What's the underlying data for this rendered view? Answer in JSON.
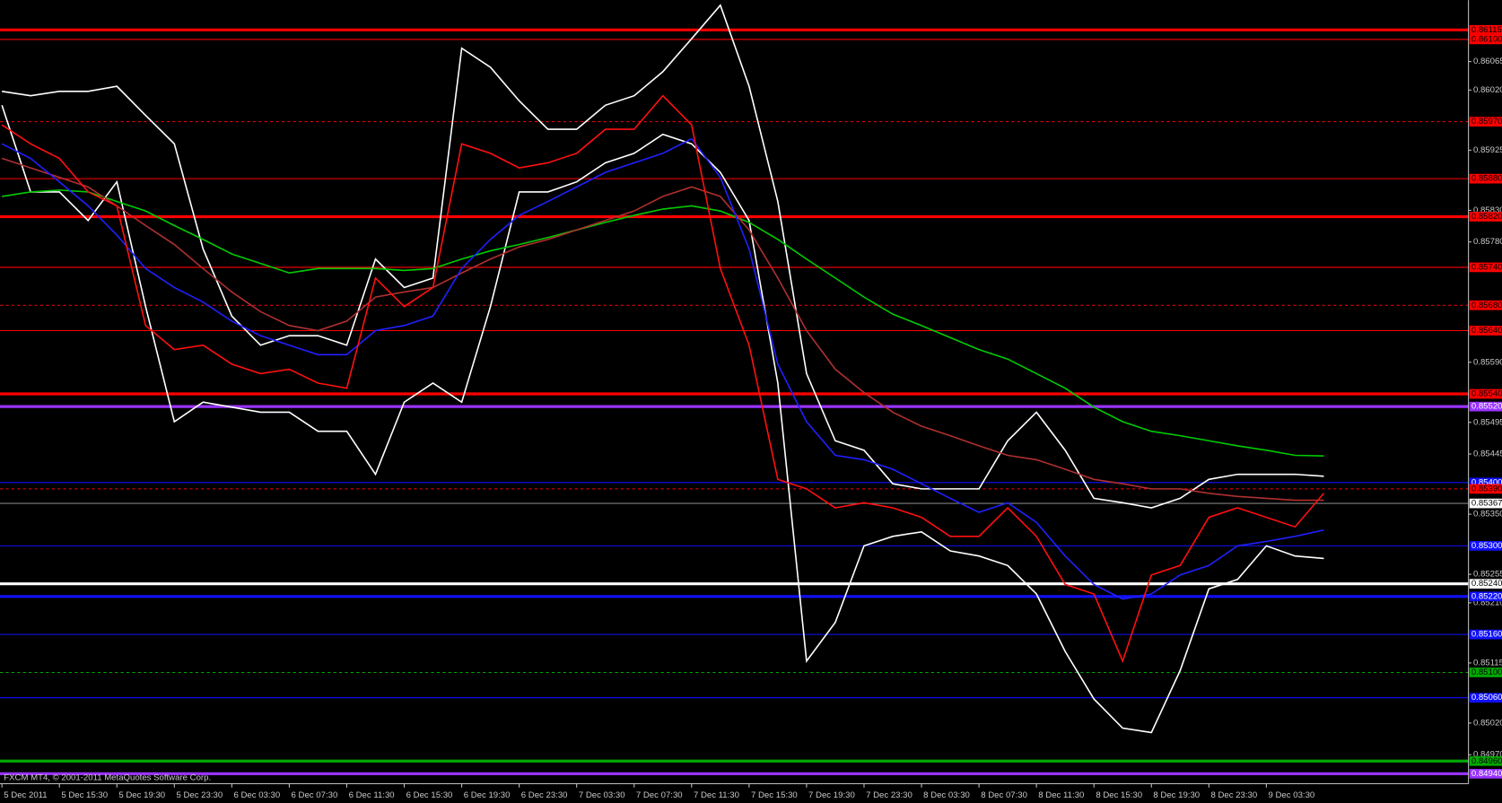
{
  "chart_data": {
    "type": "line",
    "source": "FXCM MT4, © 2001-2011 MetaQuotes Software Corp.",
    "categories": [
      "5 Dec 2011",
      null,
      "5 Dec 15:30",
      null,
      "5 Dec 19:30",
      null,
      "5 Dec 23:30",
      null,
      "6 Dec 03:30",
      null,
      "6 Dec 07:30",
      null,
      "6 Dec 11:30",
      null,
      "6 Dec 15:30",
      null,
      "6 Dec 19:30",
      null,
      "6 Dec 23:30",
      null,
      "7 Dec 03:30",
      null,
      "7 Dec 07:30",
      null,
      "7 Dec 11:30",
      null,
      "7 Dec 15:30",
      null,
      "7 Dec 19:30",
      null,
      "7 Dec 23:30",
      null,
      "8 Dec 03:30",
      null,
      "8 Dec 07:30",
      null,
      "8 Dec 11:30",
      null,
      "8 Dec 15:30",
      null,
      "8 Dec 19:30",
      null,
      "8 Dec 23:30",
      null,
      "9 Dec 03:30",
      null,
      null
    ],
    "ylim": [
      0.84894,
      0.86162
    ],
    "yticks": [
      0.86065,
      {
        "value": 0.8602,
        "label": "0.86020"
      },
      0.85925,
      {
        "value": 0.8583,
        "label": "0.85830"
      },
      {
        "value": 0.8578,
        "label": "0.85780"
      },
      {
        "value": 0.8559,
        "label": "0.85590"
      },
      0.85495,
      0.85445,
      {
        "value": 0.8535,
        "label": "0.85350"
      },
      0.85255,
      {
        "value": 0.8521,
        "label": "0.85210"
      },
      0.85115,
      {
        "value": 0.8502,
        "label": "0.85020"
      },
      {
        "value": 0.8497,
        "label": "0.84970"
      }
    ],
    "grid": false,
    "levels": [
      {
        "value": 0.86115,
        "label": "0.86115",
        "color": "#ff0000",
        "style": "thick"
      },
      {
        "value": 0.861,
        "label": "0.86100",
        "color": "#ff0000",
        "style": "thin"
      },
      {
        "value": 0.8597,
        "label": "0.85970",
        "color": "#ff0000",
        "style": "dashed"
      },
      {
        "value": 0.8588,
        "label": "0.85880",
        "color": "#ff0000",
        "style": "thin"
      },
      {
        "value": 0.8582,
        "label": "0.85820",
        "color": "#ff0000",
        "style": "thick"
      },
      {
        "value": 0.8574,
        "label": "0.85740",
        "color": "#ff0000",
        "style": "thin"
      },
      {
        "value": 0.8568,
        "label": "0.85680",
        "color": "#ff0000",
        "style": "dashed"
      },
      {
        "value": 0.8564,
        "label": "0.85640",
        "color": "#ff0000",
        "style": "thin"
      },
      {
        "value": 0.8554,
        "label": "0.85540",
        "color": "#ff0000",
        "style": "thick"
      },
      {
        "value": 0.8552,
        "label": "0.85520",
        "color": "#9933ff",
        "style": "thick"
      },
      {
        "value": 0.854,
        "label": "0.85400",
        "color": "#1010ff",
        "style": "thin"
      },
      {
        "value": 0.8539,
        "label": "0.85390",
        "color": "#ff0000",
        "style": "dashed"
      },
      {
        "value": 0.85367,
        "label": "0.85367",
        "color": "#ffffff",
        "style": "price"
      },
      {
        "value": 0.853,
        "label": "0.85300",
        "color": "#1010ff",
        "style": "thin"
      },
      {
        "value": 0.8524,
        "label": "0.85240",
        "color": "#ffffff",
        "style": "thick"
      },
      {
        "value": 0.8522,
        "label": "0.85220",
        "color": "#1010ff",
        "style": "thick"
      },
      {
        "value": 0.8516,
        "label": "0.85160",
        "color": "#1010ff",
        "style": "thin"
      },
      {
        "value": 0.851,
        "label": "0.85100",
        "color": "#00aa00",
        "style": "dashed"
      },
      {
        "value": 0.8506,
        "label": "0.85060",
        "color": "#1010ff",
        "style": "thin"
      },
      {
        "value": 0.8496,
        "label": "0.84960",
        "color": "#00aa00",
        "style": "thick"
      },
      {
        "value": 0.8494,
        "label": "0.84940",
        "color": "#9933ff",
        "style": "thick"
      }
    ],
    "series": [
      {
        "color": "#ffffff",
        "values": [
          0.86018,
          0.86011,
          0.86018,
          0.86018,
          0.86026,
          0.8598,
          0.85935,
          0.85769,
          0.85663,
          0.85617,
          0.85632,
          0.85632,
          0.85617,
          0.85753,
          0.85708,
          0.85723,
          0.86086,
          0.86056,
          0.86003,
          0.85958,
          0.85958,
          0.85996,
          0.86011,
          0.86049,
          0.86101,
          0.86154,
          0.86026,
          0.85844,
          0.85572,
          0.85466,
          0.85451,
          0.85398,
          0.8539,
          0.8539,
          0.8539,
          0.85466,
          0.85511,
          0.85451,
          0.85375,
          0.85368,
          0.8536,
          0.85375,
          0.85405,
          0.85413,
          0.85413,
          0.85413,
          0.8541
        ]
      },
      {
        "color": "#ffffff",
        "values": [
          0.85996,
          0.85859,
          0.85859,
          0.85814,
          0.85875,
          0.85678,
          0.85496,
          0.85527,
          0.85519,
          0.85511,
          0.85511,
          0.85481,
          0.85481,
          0.85413,
          0.85527,
          0.85557,
          0.85527,
          0.85678,
          0.85859,
          0.85859,
          0.85875,
          0.85905,
          0.8592,
          0.8595,
          0.85935,
          0.8589,
          0.85814,
          0.85557,
          0.85118,
          0.85179,
          0.853,
          0.85315,
          0.85322,
          0.85292,
          0.85284,
          0.85269,
          0.85224,
          0.85133,
          0.85058,
          0.85012,
          0.85005,
          0.85103,
          0.85232,
          0.85247,
          0.853,
          0.85284,
          0.8528
        ]
      },
      {
        "color": "#00cc00",
        "values": [
          0.85852,
          0.85859,
          0.85862,
          0.85859,
          0.85844,
          0.85829,
          0.85806,
          0.85784,
          0.85761,
          0.85746,
          0.85731,
          0.85738,
          0.85738,
          0.85738,
          0.85735,
          0.85738,
          0.85753,
          0.85766,
          0.85776,
          0.85787,
          0.85799,
          0.85811,
          0.85822,
          0.85832,
          0.85837,
          0.85829,
          0.85811,
          0.85784,
          0.85753,
          0.85723,
          0.85693,
          0.85666,
          0.85648,
          0.85629,
          0.8561,
          0.85595,
          0.85572,
          0.85549,
          0.85519,
          0.85496,
          0.85481,
          0.85474,
          0.85466,
          0.85458,
          0.85451,
          0.85443,
          0.85442
        ]
      },
      {
        "color": "#b03030",
        "values": [
          0.85912,
          0.85897,
          0.85882,
          0.85867,
          0.85837,
          0.85806,
          0.85776,
          0.85738,
          0.85701,
          0.8567,
          0.85648,
          0.8564,
          0.85655,
          0.85693,
          0.85701,
          0.85708,
          0.85731,
          0.85753,
          0.85772,
          0.85784,
          0.85799,
          0.85814,
          0.85829,
          0.85852,
          0.85867,
          0.85852,
          0.85799,
          0.85723,
          0.8564,
          0.85579,
          0.85542,
          0.85511,
          0.85489,
          0.85474,
          0.85458,
          0.85443,
          0.85436,
          0.85421,
          0.85405,
          0.85398,
          0.8539,
          0.8539,
          0.85383,
          0.85378,
          0.85375,
          0.85372,
          0.85372
        ]
      },
      {
        "color": "#2020ff",
        "values": [
          0.85935,
          0.85912,
          0.85875,
          0.85837,
          0.85791,
          0.85738,
          0.85708,
          0.85685,
          0.85655,
          0.85632,
          0.85617,
          0.85602,
          0.85602,
          0.8564,
          0.85648,
          0.85663,
          0.85738,
          0.85784,
          0.85822,
          0.85844,
          0.85867,
          0.8589,
          0.85905,
          0.8592,
          0.85943,
          0.85882,
          0.85769,
          0.85587,
          0.85496,
          0.85443,
          0.85436,
          0.85421,
          0.85398,
          0.85375,
          0.85353,
          0.85368,
          0.85337,
          0.85284,
          0.85239,
          0.85216,
          0.85224,
          0.85254,
          0.85269,
          0.853,
          0.85307,
          0.85315,
          0.85325
        ]
      },
      {
        "color": "#ff1010",
        "values": [
          0.85965,
          0.85935,
          0.85912,
          0.85859,
          0.85837,
          0.85648,
          0.8561,
          0.85617,
          0.85587,
          0.85572,
          0.85579,
          0.85557,
          0.85549,
          0.85723,
          0.85678,
          0.85708,
          0.85935,
          0.8592,
          0.85897,
          0.85905,
          0.8592,
          0.85958,
          0.85958,
          0.86011,
          0.85965,
          0.85738,
          0.85617,
          0.85405,
          0.8539,
          0.8536,
          0.85368,
          0.8536,
          0.85345,
          0.85315,
          0.85315,
          0.8536,
          0.85315,
          0.85239,
          0.85224,
          0.85118,
          0.85254,
          0.85269,
          0.85345,
          0.8536,
          0.85345,
          0.8533,
          0.85383
        ]
      }
    ]
  }
}
